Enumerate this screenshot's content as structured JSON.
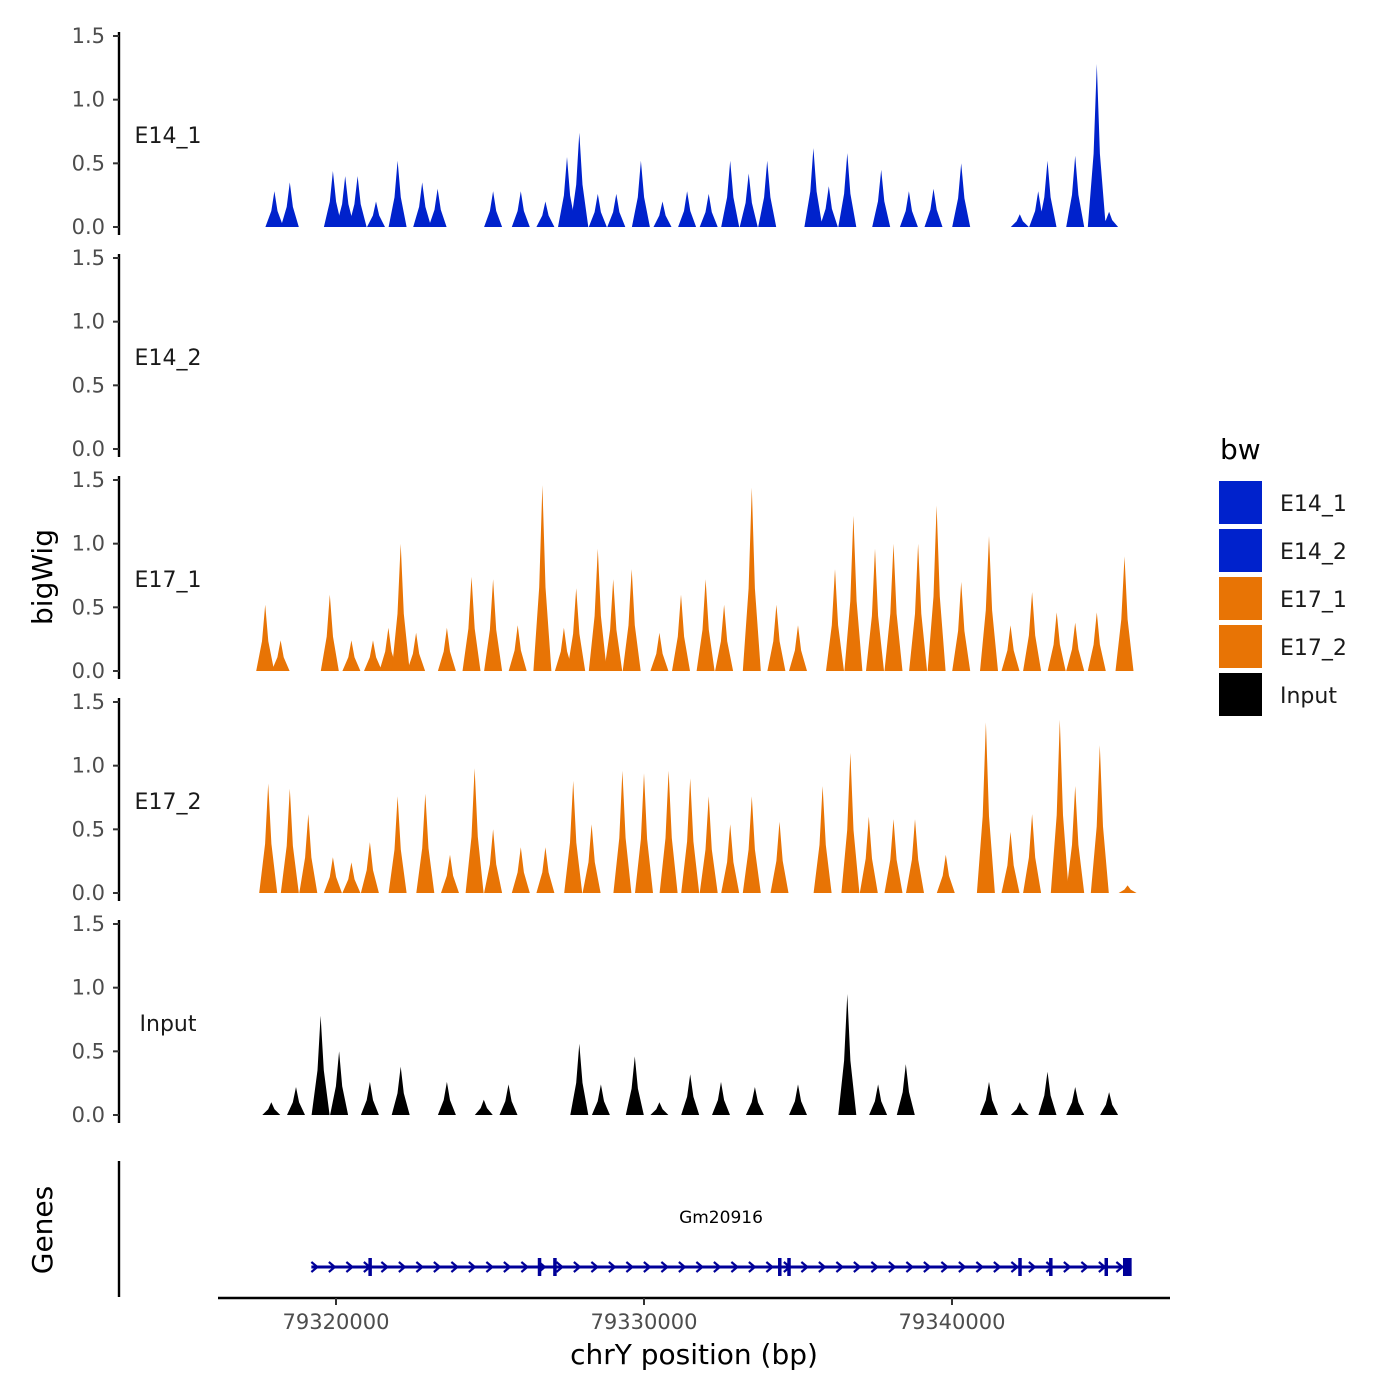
{
  "chart_data": {
    "type": "area",
    "x_axis": {
      "label": "chrY position (bp)",
      "range": [
        79315500,
        79346500
      ],
      "ticks": [
        "79320000",
        "79330000",
        "79340000"
      ],
      "tick_values": [
        79320000,
        79330000,
        79340000
      ]
    },
    "y_axis": {
      "label": "bigWig",
      "range": [
        0,
        1.5
      ],
      "ticks": [
        "0.0",
        "0.5",
        "1.0",
        "1.5"
      ],
      "tick_values": [
        0,
        0.5,
        1.0,
        1.5
      ]
    },
    "legend": {
      "title": "bw",
      "position": "right",
      "entries": [
        {
          "label": "E14_1",
          "color": "#0022CC"
        },
        {
          "label": "E14_2",
          "color": "#0022CC"
        },
        {
          "label": "E17_1",
          "color": "#E87405"
        },
        {
          "label": "E17_2",
          "color": "#E87405"
        },
        {
          "label": "Input",
          "color": "#000000"
        }
      ]
    },
    "series": [
      {
        "name": "E14_1",
        "color": "#0022CC",
        "peaks": [
          [
            79318000,
            0.28
          ],
          [
            79318500,
            0.35
          ],
          [
            79319900,
            0.44
          ],
          [
            79320300,
            0.4
          ],
          [
            79320700,
            0.4
          ],
          [
            79321300,
            0.2
          ],
          [
            79322000,
            0.52
          ],
          [
            79322800,
            0.35
          ],
          [
            79323300,
            0.3
          ],
          [
            79325100,
            0.28
          ],
          [
            79326000,
            0.28
          ],
          [
            79326800,
            0.2
          ],
          [
            79327500,
            0.55
          ],
          [
            79327900,
            0.74
          ],
          [
            79328500,
            0.26
          ],
          [
            79329100,
            0.26
          ],
          [
            79329900,
            0.52
          ],
          [
            79330600,
            0.2
          ],
          [
            79331400,
            0.28
          ],
          [
            79332100,
            0.26
          ],
          [
            79332800,
            0.52
          ],
          [
            79333400,
            0.42
          ],
          [
            79334000,
            0.52
          ],
          [
            79335500,
            0.62
          ],
          [
            79336000,
            0.32
          ],
          [
            79336600,
            0.58
          ],
          [
            79337700,
            0.45
          ],
          [
            79338600,
            0.28
          ],
          [
            79339400,
            0.3
          ],
          [
            79340300,
            0.5
          ],
          [
            79342200,
            0.1
          ],
          [
            79342800,
            0.28
          ],
          [
            79343100,
            0.52
          ],
          [
            79344000,
            0.56
          ],
          [
            79344700,
            1.28
          ],
          [
            79345100,
            0.12
          ]
        ]
      },
      {
        "name": "E14_2",
        "color": "#0022CC",
        "peaks": []
      },
      {
        "name": "E17_1",
        "color": "#E87405",
        "peaks": [
          [
            79317700,
            0.52
          ],
          [
            79318200,
            0.24
          ],
          [
            79319800,
            0.6
          ],
          [
            79320500,
            0.24
          ],
          [
            79321200,
            0.24
          ],
          [
            79321700,
            0.34
          ],
          [
            79322100,
            1.0
          ],
          [
            79322600,
            0.3
          ],
          [
            79323600,
            0.34
          ],
          [
            79324400,
            0.74
          ],
          [
            79325100,
            0.72
          ],
          [
            79325900,
            0.36
          ],
          [
            79326700,
            1.46
          ],
          [
            79327400,
            0.34
          ],
          [
            79327800,
            0.65
          ],
          [
            79328500,
            0.96
          ],
          [
            79329000,
            0.72
          ],
          [
            79329600,
            0.8
          ],
          [
            79330500,
            0.3
          ],
          [
            79331200,
            0.6
          ],
          [
            79332000,
            0.72
          ],
          [
            79332600,
            0.52
          ],
          [
            79333500,
            1.44
          ],
          [
            79334300,
            0.52
          ],
          [
            79335000,
            0.36
          ],
          [
            79336200,
            0.8
          ],
          [
            79336800,
            1.22
          ],
          [
            79337500,
            0.96
          ],
          [
            79338100,
            1.0
          ],
          [
            79338900,
            1.0
          ],
          [
            79339500,
            1.3
          ],
          [
            79340300,
            0.7
          ],
          [
            79341200,
            1.06
          ],
          [
            79341900,
            0.36
          ],
          [
            79342600,
            0.62
          ],
          [
            79343400,
            0.46
          ],
          [
            79344000,
            0.38
          ],
          [
            79344700,
            0.46
          ],
          [
            79345600,
            0.9
          ]
        ]
      },
      {
        "name": "E17_2",
        "color": "#E87405",
        "peaks": [
          [
            79317800,
            0.86
          ],
          [
            79318500,
            0.82
          ],
          [
            79319100,
            0.62
          ],
          [
            79319900,
            0.28
          ],
          [
            79320500,
            0.24
          ],
          [
            79321100,
            0.4
          ],
          [
            79322000,
            0.76
          ],
          [
            79322900,
            0.78
          ],
          [
            79323700,
            0.3
          ],
          [
            79324500,
            0.98
          ],
          [
            79325100,
            0.5
          ],
          [
            79326000,
            0.36
          ],
          [
            79326800,
            0.36
          ],
          [
            79327700,
            0.88
          ],
          [
            79328300,
            0.54
          ],
          [
            79329300,
            0.96
          ],
          [
            79330000,
            0.94
          ],
          [
            79330800,
            0.96
          ],
          [
            79331500,
            0.9
          ],
          [
            79332100,
            0.76
          ],
          [
            79332800,
            0.54
          ],
          [
            79333500,
            0.76
          ],
          [
            79334400,
            0.56
          ],
          [
            79335800,
            0.84
          ],
          [
            79336700,
            1.1
          ],
          [
            79337300,
            0.6
          ],
          [
            79338100,
            0.58
          ],
          [
            79338800,
            0.58
          ],
          [
            79339800,
            0.3
          ],
          [
            79341100,
            1.34
          ],
          [
            79341900,
            0.48
          ],
          [
            79342600,
            0.62
          ],
          [
            79343500,
            1.36
          ],
          [
            79344000,
            0.84
          ],
          [
            79344800,
            1.16
          ],
          [
            79345700,
            0.06
          ]
        ]
      },
      {
        "name": "Input",
        "color": "#000000",
        "peaks": [
          [
            79317900,
            0.1
          ],
          [
            79318700,
            0.22
          ],
          [
            79319500,
            0.78
          ],
          [
            79320100,
            0.5
          ],
          [
            79321100,
            0.26
          ],
          [
            79322100,
            0.38
          ],
          [
            79323600,
            0.26
          ],
          [
            79324800,
            0.12
          ],
          [
            79325600,
            0.24
          ],
          [
            79327900,
            0.56
          ],
          [
            79328600,
            0.24
          ],
          [
            79329700,
            0.46
          ],
          [
            79330500,
            0.1
          ],
          [
            79331500,
            0.32
          ],
          [
            79332500,
            0.26
          ],
          [
            79333600,
            0.22
          ],
          [
            79335000,
            0.24
          ],
          [
            79336600,
            0.95
          ],
          [
            79337600,
            0.24
          ],
          [
            79338500,
            0.4
          ],
          [
            79341200,
            0.26
          ],
          [
            79342200,
            0.1
          ],
          [
            79343100,
            0.34
          ],
          [
            79344000,
            0.22
          ],
          [
            79345100,
            0.18
          ]
        ]
      }
    ],
    "genes": {
      "title": "Genes",
      "items": [
        {
          "name": "Gm20916",
          "start": 79319200,
          "end": 79345800,
          "strand": "+",
          "color": "#000099",
          "exons": [
            79321100,
            79326600,
            79327100,
            79334400,
            79334700,
            79342200,
            79343200,
            79345000,
            79345600
          ]
        }
      ]
    }
  }
}
